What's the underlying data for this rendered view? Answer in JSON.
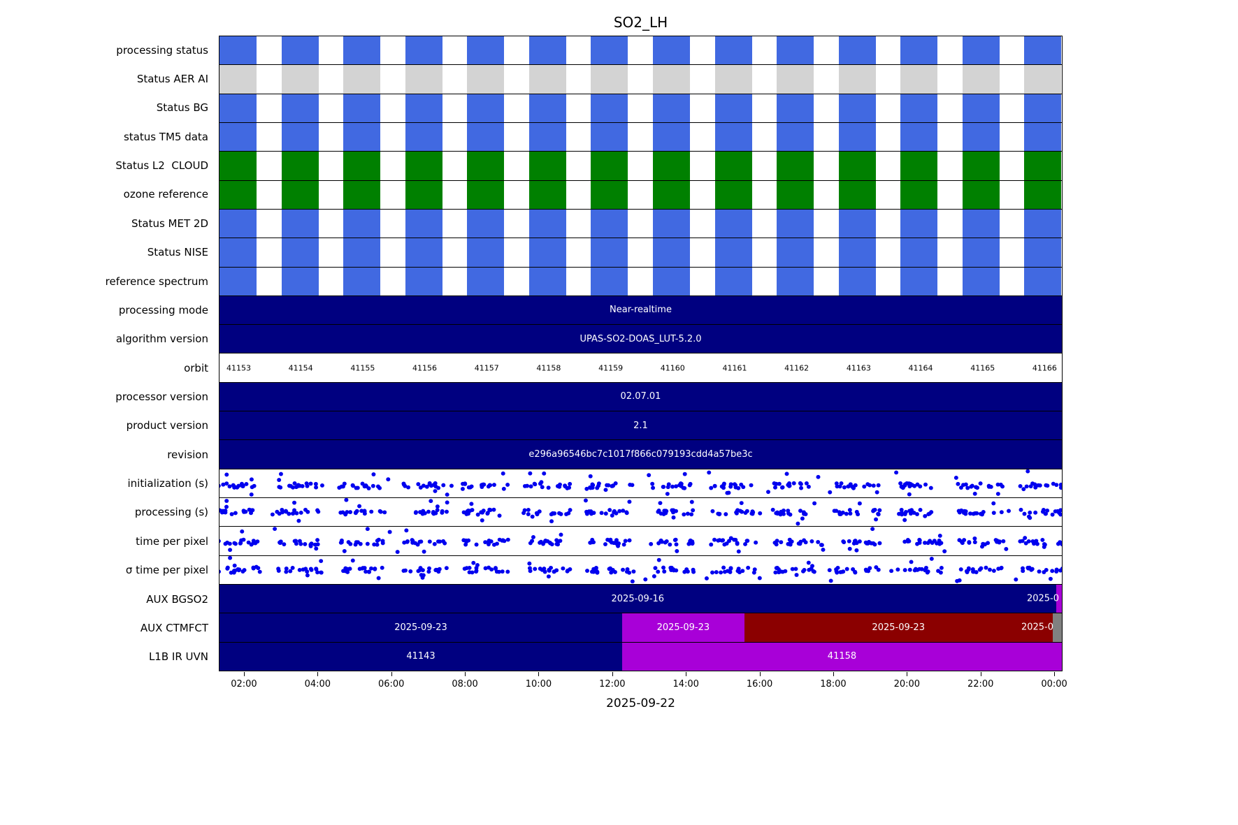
{
  "colors": {
    "blue": "#4169e1",
    "gray": "#d3d3d3",
    "green": "#008000",
    "navy": "#000080",
    "purple": "#a800d8",
    "darkred": "#8b0000",
    "slate": "#808080",
    "dot": "#0000ee"
  },
  "chart_data": {
    "type": "timeline",
    "title": "SO2_LH",
    "xlabel": "2025-09-22",
    "x_ticks": [
      "02:00",
      "04:00",
      "06:00",
      "08:00",
      "10:00",
      "12:00",
      "14:00",
      "16:00",
      "18:00",
      "20:00",
      "22:00",
      "00:00"
    ],
    "orbits": [
      "41153",
      "41154",
      "41155",
      "41156",
      "41157",
      "41158",
      "41159",
      "41160",
      "41161",
      "41162",
      "41163",
      "41164",
      "41165",
      "41166"
    ],
    "legend": "none",
    "grid": "off",
    "layout": {
      "block_count": 14,
      "block_spacing": 0.0735,
      "block_width": 0.044,
      "orbit_first": 0.0228,
      "orbit_spacing": 0.0736,
      "tick_first": 0.0298,
      "tick_spacing": 0.0873,
      "cluster_points": 16,
      "outlier_points": 3
    },
    "rows": [
      {
        "label": "processing status",
        "type": "blocks",
        "color_key": "blue"
      },
      {
        "label": "Status AER AI",
        "type": "blocks",
        "color_key": "gray"
      },
      {
        "label": "Status BG",
        "type": "blocks",
        "color_key": "blue"
      },
      {
        "label": "status TM5 data",
        "type": "blocks",
        "color_key": "blue"
      },
      {
        "label": "Status L2  CLOUD",
        "type": "blocks",
        "color_key": "green"
      },
      {
        "label": "ozone reference",
        "type": "blocks",
        "color_key": "green"
      },
      {
        "label": "Status MET 2D",
        "type": "blocks",
        "color_key": "blue"
      },
      {
        "label": "Status NISE",
        "type": "blocks",
        "color_key": "blue"
      },
      {
        "label": "reference spectrum",
        "type": "blocks",
        "color_key": "blue"
      },
      {
        "label": "processing mode",
        "type": "segments",
        "segments": [
          {
            "text": "Near-realtime",
            "color_key": "navy",
            "start": 0,
            "end": 1
          }
        ]
      },
      {
        "label": "algorithm version",
        "type": "segments",
        "segments": [
          {
            "text": "UPAS-SO2-DOAS_LUT-5.2.0",
            "color_key": "navy",
            "start": 0,
            "end": 1
          }
        ]
      },
      {
        "label": "orbit",
        "type": "orbit_labels"
      },
      {
        "label": "processor version",
        "type": "segments",
        "segments": [
          {
            "text": "02.07.01",
            "color_key": "navy",
            "start": 0,
            "end": 1
          }
        ]
      },
      {
        "label": "product version",
        "type": "segments",
        "segments": [
          {
            "text": "2.1",
            "color_key": "navy",
            "start": 0,
            "end": 1
          }
        ]
      },
      {
        "label": "revision",
        "type": "segments",
        "segments": [
          {
            "text": "e296a96546bc7c1017f866c079193cdd4a57be3c",
            "color_key": "navy",
            "start": 0,
            "end": 1
          }
        ]
      },
      {
        "label": "initialization (s)",
        "type": "scatter",
        "seed": 11,
        "base": 0.58
      },
      {
        "label": "processing (s)",
        "type": "scatter",
        "seed": 22,
        "base": 0.5
      },
      {
        "label": "time per pixel",
        "type": "scatter",
        "seed": 33,
        "base": 0.55
      },
      {
        "label": "σ time per pixel",
        "type": "scatter",
        "seed": 44,
        "base": 0.5
      },
      {
        "label": "AUX BGSO2",
        "type": "segments",
        "segments": [
          {
            "text": "2025-09-16",
            "color_key": "navy",
            "start": 0,
            "end": 0.993
          },
          {
            "text": "",
            "color_key": "purple",
            "start": 0.993,
            "end": 1
          }
        ],
        "edge_label": "2025-0",
        "edge_right": 4
      },
      {
        "label": "AUX CTMFCT",
        "type": "segments",
        "segments": [
          {
            "text": "2025-09-23",
            "color_key": "navy",
            "start": 0,
            "end": 0.478
          },
          {
            "text": "2025-09-23",
            "color_key": "purple",
            "start": 0.478,
            "end": 0.623
          },
          {
            "text": "2025-09-23",
            "color_key": "darkred",
            "start": 0.623,
            "end": 0.989
          },
          {
            "text": "",
            "color_key": "slate",
            "start": 0.989,
            "end": 1
          }
        ],
        "edge_label": "2025-0",
        "edge_right": 12
      },
      {
        "label": "L1B IR UVN",
        "type": "segments",
        "segments": [
          {
            "text": "41143",
            "color_key": "navy",
            "start": 0,
            "end": 0.478
          },
          {
            "text": "41158",
            "color_key": "purple",
            "start": 0.478,
            "end": 1
          }
        ]
      }
    ]
  }
}
